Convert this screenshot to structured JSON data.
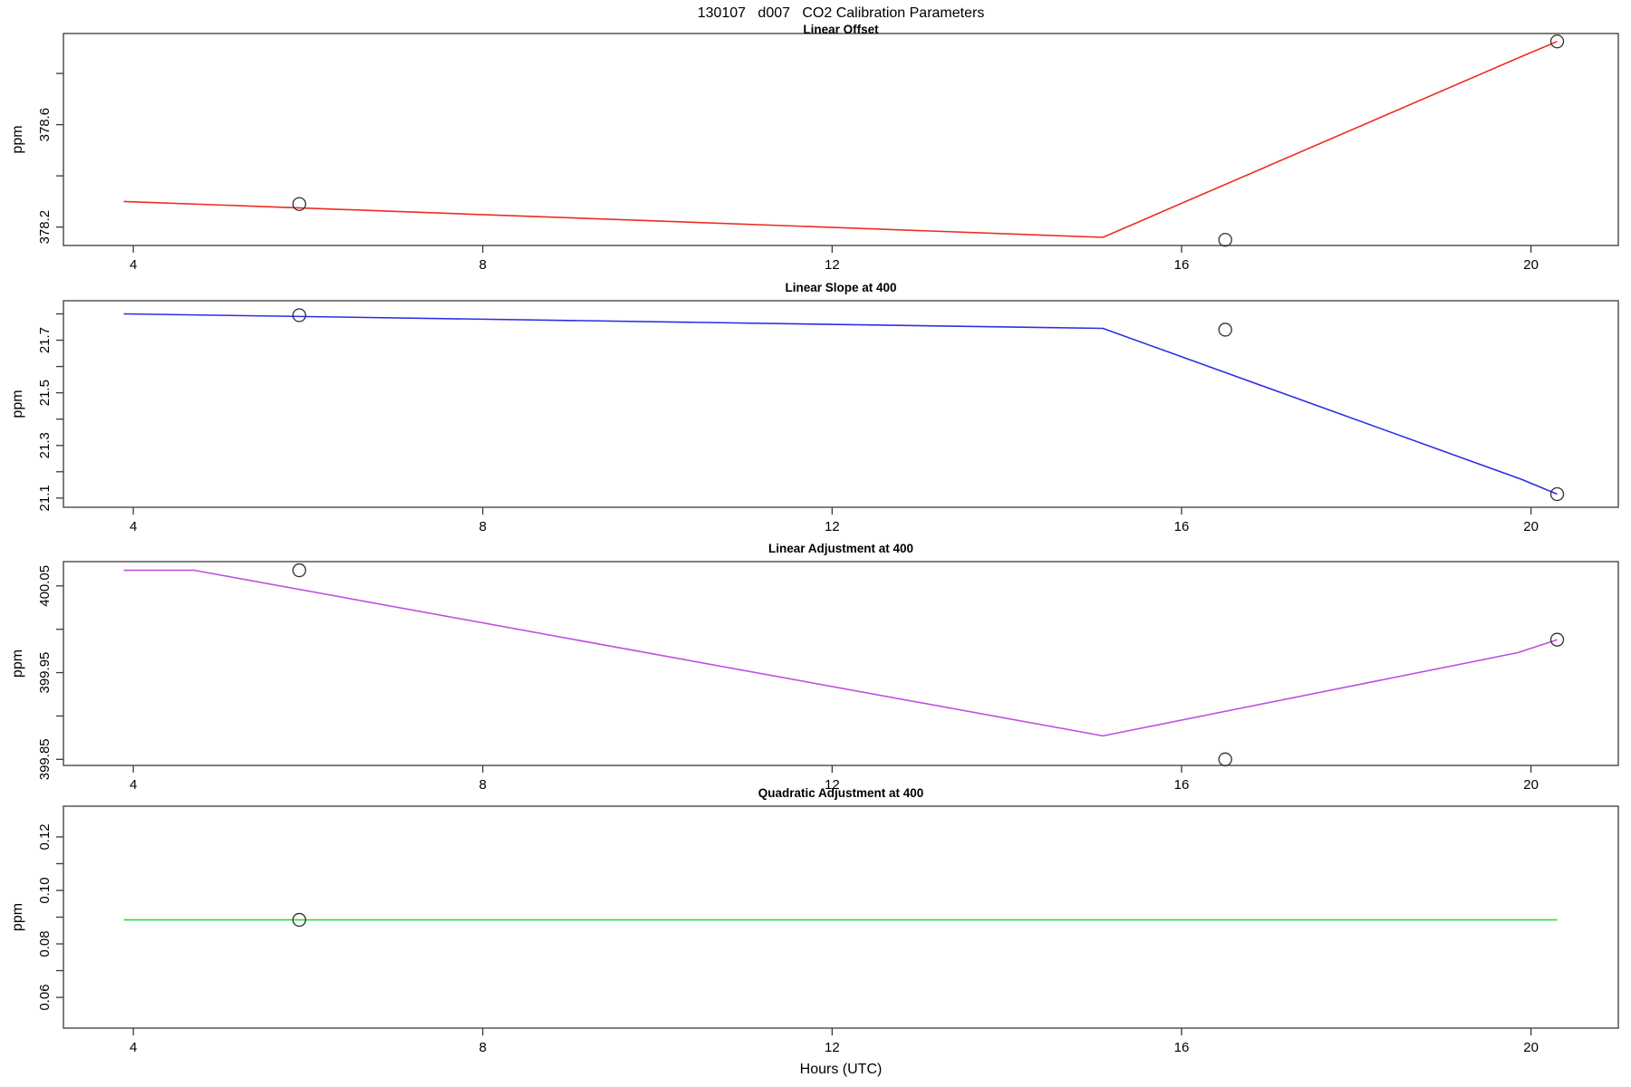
{
  "page_title": "130107   d007   CO2 Calibration Parameters",
  "x_axis": {
    "label": "Hours (UTC)",
    "xlim": [
      3.2,
      21.0
    ],
    "xticks": [
      {
        "v": 4,
        "t": "4"
      },
      {
        "v": 8,
        "t": "8"
      },
      {
        "v": 12,
        "t": "12"
      },
      {
        "v": 16,
        "t": "16"
      },
      {
        "v": 20,
        "t": "20"
      }
    ]
  },
  "marker_color": "#2f2f2f",
  "axis_color": "#3a3a3a",
  "chart_data": [
    {
      "type": "line",
      "title": "Linear Offset",
      "ylabel": "ppm",
      "color": "#ef2b22",
      "ylim": [
        378.128,
        378.956
      ],
      "yticks": [
        {
          "v": 378.2,
          "t": "378.2"
        },
        {
          "v": 378.4,
          "t": ""
        },
        {
          "v": 378.6,
          "t": "378.6"
        },
        {
          "v": 378.8,
          "t": ""
        }
      ],
      "line": {
        "x": [
          3.89,
          15.1,
          19.85,
          20.3
        ],
        "y": [
          378.3,
          378.16,
          378.86,
          378.925
        ]
      },
      "points": {
        "x": [
          5.9,
          16.5,
          20.3
        ],
        "y": [
          378.29,
          378.15,
          378.925
        ]
      }
    },
    {
      "type": "line",
      "title": "Linear Slope at 400",
      "ylabel": "ppm",
      "color": "#2e2ee8",
      "ylim": [
        21.065,
        21.85
      ],
      "yticks": [
        {
          "v": 21.1,
          "t": "21.1"
        },
        {
          "v": 21.2,
          "t": ""
        },
        {
          "v": 21.3,
          "t": "21.3"
        },
        {
          "v": 21.4,
          "t": ""
        },
        {
          "v": 21.5,
          "t": "21.5"
        },
        {
          "v": 21.6,
          "t": ""
        },
        {
          "v": 21.7,
          "t": "21.7"
        },
        {
          "v": 21.8,
          "t": ""
        }
      ],
      "line": {
        "x": [
          3.89,
          15.1,
          19.9,
          20.3
        ],
        "y": [
          21.8,
          21.745,
          21.17,
          21.115
        ]
      },
      "points": {
        "x": [
          5.9,
          16.5,
          20.3
        ],
        "y": [
          21.795,
          21.74,
          21.115
        ]
      }
    },
    {
      "type": "line",
      "title": "Linear Adjustment at 400",
      "ylabel": "ppm",
      "color": "#c14ee0",
      "ylim": [
        399.843,
        400.078
      ],
      "yticks": [
        {
          "v": 399.85,
          "t": "399.85"
        },
        {
          "v": 399.9,
          "t": ""
        },
        {
          "v": 399.95,
          "t": "399.95"
        },
        {
          "v": 400.0,
          "t": ""
        },
        {
          "v": 400.05,
          "t": "400.05"
        }
      ],
      "line": {
        "x": [
          3.89,
          4.7,
          15.1,
          19.85,
          20.3
        ],
        "y": [
          400.068,
          400.068,
          399.877,
          399.973,
          399.988
        ]
      },
      "points": {
        "x": [
          5.9,
          16.5,
          20.3
        ],
        "y": [
          400.068,
          399.85,
          399.988
        ]
      }
    },
    {
      "type": "line",
      "title": "Quadratic Adjustment at 400",
      "ylabel": "ppm",
      "color": "#1fde27",
      "ylim": [
        0.0485,
        0.1315
      ],
      "yticks": [
        {
          "v": 0.06,
          "t": "0.06"
        },
        {
          "v": 0.07,
          "t": ""
        },
        {
          "v": 0.08,
          "t": "0.08"
        },
        {
          "v": 0.09,
          "t": ""
        },
        {
          "v": 0.1,
          "t": "0.10"
        },
        {
          "v": 0.11,
          "t": ""
        },
        {
          "v": 0.12,
          "t": "0.12"
        }
      ],
      "line": {
        "x": [
          3.89,
          20.3
        ],
        "y": [
          0.089,
          0.089
        ]
      },
      "points": {
        "x": [
          5.9
        ],
        "y": [
          0.089
        ]
      }
    }
  ]
}
